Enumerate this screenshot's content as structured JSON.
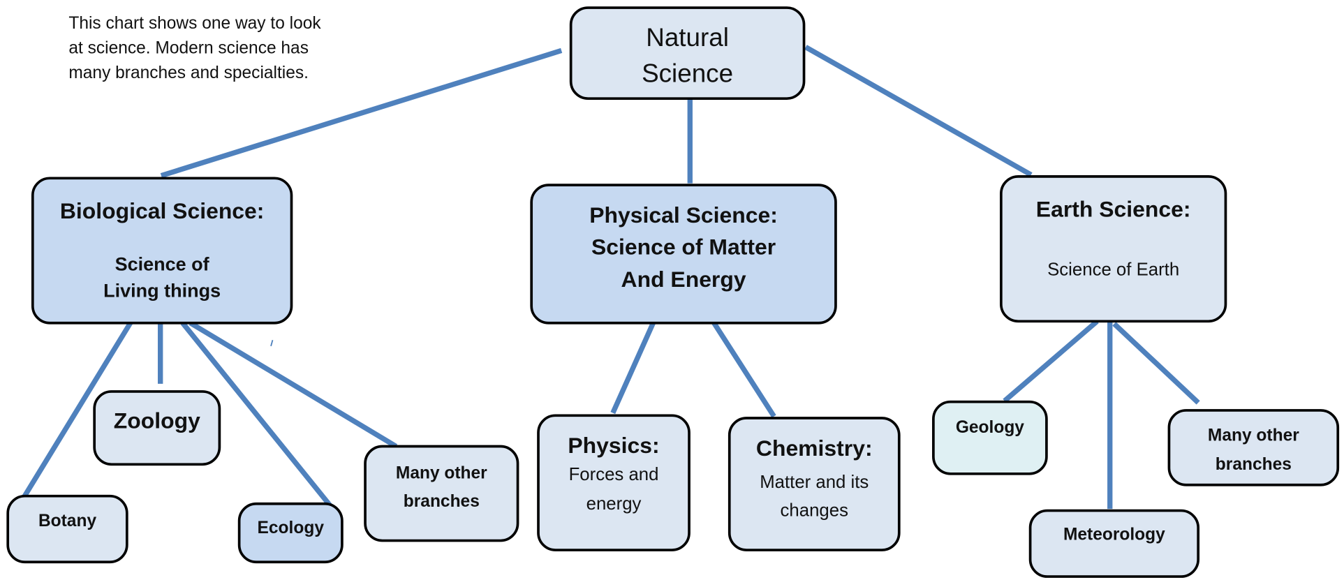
{
  "intro": [
    "This chart shows one way to look",
    "at science.  Modern science has",
    "many branches and specialties."
  ],
  "nodes": [
    {
      "lines": [
        "Natural",
        "Science"
      ]
    },
    {
      "lines": [
        "Biological Science:",
        "Science of",
        "Living things"
      ]
    },
    {
      "lines": [
        "Physical Science:",
        "Science of Matter",
        "And Energy"
      ]
    },
    {
      "lines": [
        "Earth Science:",
        "Science of Earth"
      ]
    },
    {
      "lines": [
        "Zoology"
      ]
    },
    {
      "lines": [
        "Botany"
      ]
    },
    {
      "lines": [
        "Ecology"
      ]
    },
    {
      "lines": [
        "Many other",
        "branches"
      ]
    },
    {
      "lines": [
        "Physics:",
        "Forces and",
        "energy"
      ]
    },
    {
      "lines": [
        "Chemistry:",
        "Matter and its",
        "changes"
      ]
    },
    {
      "lines": [
        "Geology"
      ]
    },
    {
      "lines": [
        "Meteorology"
      ]
    },
    {
      "lines": [
        "Many other",
        "branches"
      ]
    }
  ]
}
